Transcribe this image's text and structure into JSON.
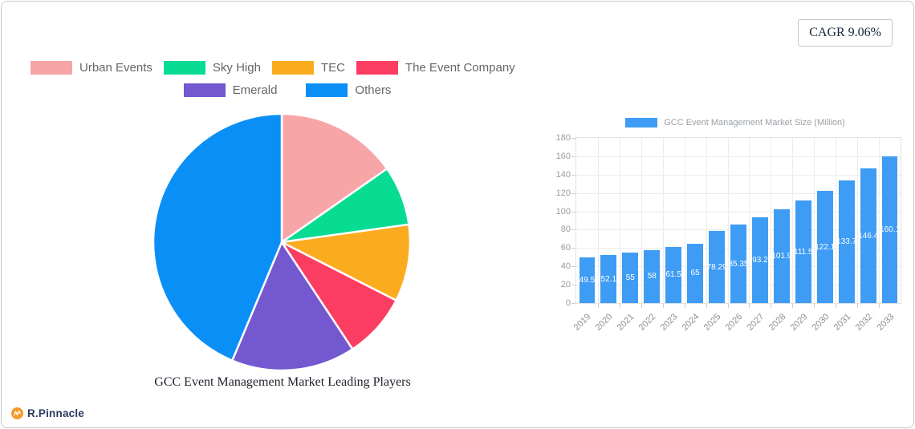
{
  "card": {
    "cagr_label": "CAGR 9.06%"
  },
  "brand": {
    "name": "R.Pinnacle",
    "icon": "chart-zigzag-in-circle",
    "icon_color": "#f59b2d",
    "text_color": "#2b3a5e"
  },
  "chart_data": [
    {
      "type": "pie",
      "title": "GCC Event Management Market Leading Players",
      "legend_position": "top",
      "slices": [
        {
          "label": "Urban Events",
          "value": 15.3,
          "color": "#f7a5a7"
        },
        {
          "label": "Sky High",
          "value": 7.5,
          "color": "#08dc92"
        },
        {
          "label": "TEC",
          "value": 9.7,
          "color": "#fbac1e"
        },
        {
          "label": "The Event Company",
          "value": 8.2,
          "color": "#fb3d62"
        },
        {
          "label": "Emerald",
          "value": 15.6,
          "color": "#7358cf"
        },
        {
          "label": "Others",
          "value": 43.7,
          "color": "#0a8ff7"
        }
      ],
      "start_angle_deg": 0,
      "direction": "clockwise",
      "slice_gap_color": "#ffffff"
    },
    {
      "type": "bar",
      "legend": "GCC Event Management Market Size (Million)",
      "bar_color": "#3e9cf4",
      "categories": [
        "2019",
        "2020",
        "2021",
        "2022",
        "2023",
        "2024",
        "2025",
        "2026",
        "2027",
        "2028",
        "2029",
        "2030",
        "2031",
        "2032",
        "2033"
      ],
      "values": [
        49.5,
        52.1,
        55,
        58,
        61.5,
        65,
        78.29,
        85.35,
        93.2,
        101.9,
        111.5,
        122.1,
        133.7,
        146.4,
        160.1
      ],
      "value_labels": [
        "49.5",
        "52.1",
        "55",
        "58",
        "61.5",
        "65",
        "78.29",
        "85.35",
        "93.2",
        "101.9",
        "111.5",
        "122.1",
        "133.7",
        "146.4",
        "160.1"
      ],
      "xlabel": "",
      "ylabel": "",
      "ylim": [
        0,
        180
      ],
      "ytick_step": 20,
      "grid": true
    }
  ]
}
